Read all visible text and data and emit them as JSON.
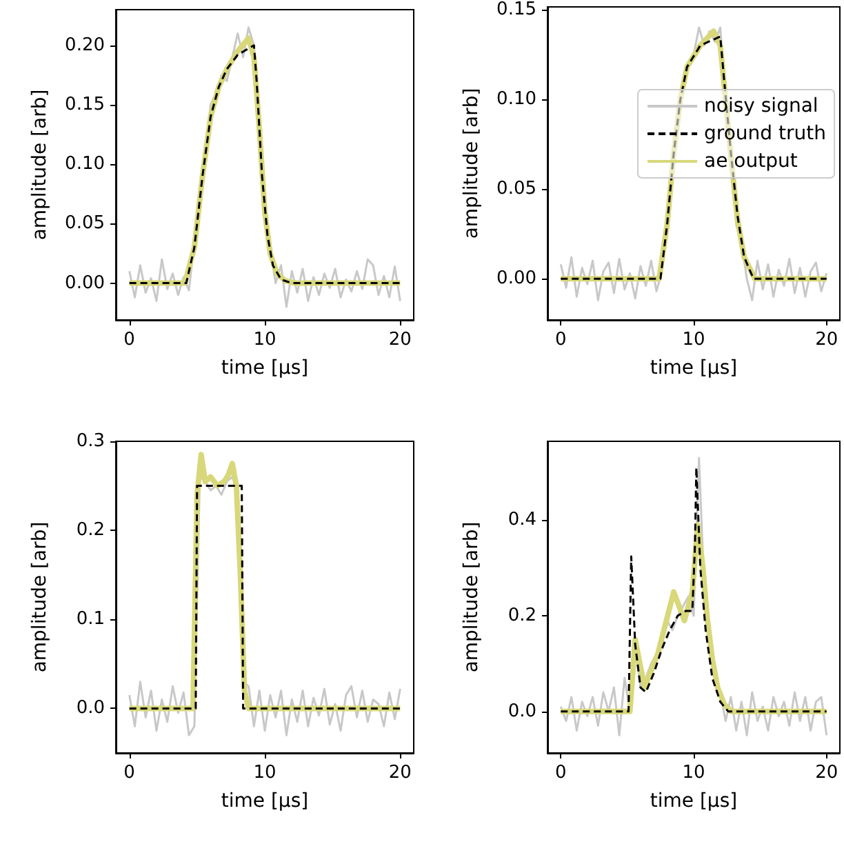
{
  "chart_data": [
    {
      "type": "line",
      "xlabel": "time [μs]",
      "ylabel": "amplitude [arb]",
      "legend": false,
      "grid": false,
      "marker": "none",
      "xlim": [
        -1,
        21
      ],
      "xticks": [
        0,
        10,
        20
      ],
      "ylim": [
        -0.031,
        0.23
      ],
      "yticks": [
        {
          "value": 0,
          "label": "0.00"
        },
        {
          "value": 0.05,
          "label": "0.05"
        },
        {
          "value": 0.1,
          "label": "0.10"
        },
        {
          "value": 0.15,
          "label": "0.15"
        },
        {
          "value": 0.2,
          "label": "0.20"
        }
      ],
      "x": [
        0,
        0.4,
        0.8,
        1.2,
        1.6,
        2,
        2.4,
        2.8,
        3.2,
        3.6,
        4,
        4.4,
        4.8,
        5.2,
        5.6,
        6,
        6.4,
        6.8,
        7.2,
        7.6,
        8,
        8.4,
        8.8,
        9.2,
        9.6,
        10,
        10.4,
        10.8,
        11.2,
        11.6,
        12,
        12.4,
        12.8,
        13.2,
        13.6,
        14,
        14.4,
        14.8,
        15.2,
        15.6,
        16,
        16.4,
        16.8,
        17.2,
        17.6,
        18,
        18.4,
        18.8,
        19.2,
        19.6,
        20
      ],
      "series": [
        {
          "color": "#c8c8c8",
          "line_style": "solid",
          "values": [
            0.01,
            -0.012,
            0.015,
            -0.008,
            0.004,
            -0.015,
            0.02,
            -0.005,
            0.008,
            -0.01,
            0.005,
            -0.006,
            0.035,
            0.07,
            0.11,
            0.15,
            0.16,
            0.175,
            0.17,
            0.19,
            0.21,
            0.19,
            0.215,
            0.2,
            0.13,
            0.05,
            0.03,
            0.0,
            0.015,
            -0.02,
            0.01,
            -0.008,
            0.012,
            -0.015,
            0.005,
            -0.01,
            0.008,
            -0.004,
            0.012,
            -0.012,
            0.003,
            -0.007,
            0.01,
            -0.005,
            0.02,
            0.015,
            -0.01,
            0.006,
            -0.012,
            0.014,
            -0.015
          ]
        },
        {
          "color": "#000000",
          "line_style": "dashed",
          "x": [
            0,
            4.2,
            4.8,
            5.4,
            6,
            6.6,
            7.2,
            8,
            9.2,
            9.4,
            9.8,
            10.2,
            10.6,
            11.2,
            12,
            20
          ],
          "values": [
            0,
            0,
            0.03,
            0.09,
            0.14,
            0.165,
            0.18,
            0.192,
            0.2,
            0.17,
            0.09,
            0.04,
            0.015,
            0.003,
            0,
            0
          ]
        },
        {
          "color": "#d8d87a",
          "line_style": "solid",
          "x": [
            0,
            4.1,
            4.8,
            5.4,
            6,
            6.6,
            7.2,
            8,
            8.8,
            9.2,
            9.6,
            10,
            10.4,
            10.9,
            11.5,
            12.2,
            20
          ],
          "values": [
            0,
            0,
            0.03,
            0.09,
            0.14,
            0.165,
            0.18,
            0.195,
            0.206,
            0.19,
            0.13,
            0.06,
            0.025,
            0.008,
            0.002,
            0,
            0
          ]
        }
      ]
    },
    {
      "type": "line",
      "xlabel": "time [μs]",
      "ylabel": "amplitude [arb]",
      "legend": "right",
      "grid": false,
      "marker": "none",
      "xlim": [
        -1,
        21
      ],
      "xticks": [
        0,
        10,
        20
      ],
      "ylim": [
        -0.023,
        0.1515
      ],
      "yticks": [
        {
          "value": 0,
          "label": "0.00"
        },
        {
          "value": 0.05,
          "label": "0.05"
        },
        {
          "value": 0.1,
          "label": "0.10"
        },
        {
          "value": 0.15,
          "label": "0.15"
        }
      ],
      "x": [
        0,
        0.4,
        0.8,
        1.2,
        1.6,
        2,
        2.4,
        2.8,
        3.2,
        3.6,
        4,
        4.4,
        4.8,
        5.2,
        5.6,
        6,
        6.4,
        6.8,
        7.2,
        7.6,
        8,
        8.4,
        8.8,
        9.2,
        9.6,
        10,
        10.4,
        10.8,
        11.2,
        11.6,
        12,
        12.4,
        12.8,
        13.2,
        13.6,
        14,
        14.4,
        14.8,
        15.2,
        15.6,
        16,
        16.4,
        16.8,
        17.2,
        17.6,
        18,
        18.4,
        18.8,
        19.2,
        19.6,
        20
      ],
      "series": [
        {
          "name": "noisy signal",
          "color": "#c8c8c8",
          "line_style": "solid",
          "values": [
            0.008,
            -0.005,
            0.012,
            -0.01,
            0.006,
            -0.003,
            0.01,
            -0.012,
            0.004,
            0.009,
            -0.008,
            0.011,
            -0.006,
            0.003,
            -0.011,
            0.007,
            -0.004,
            0.01,
            -0.007,
            0.004,
            0.03,
            0.065,
            0.09,
            0.11,
            0.12,
            0.125,
            0.14,
            0.13,
            0.138,
            0.132,
            0.14,
            0.1,
            0.075,
            0.03,
            0.02,
            0.0,
            -0.012,
            0.01,
            -0.006,
            0.008,
            -0.01,
            0.005,
            -0.004,
            0.011,
            -0.008,
            0.006,
            -0.01,
            0.004,
            0.009,
            -0.007,
            0.003
          ]
        },
        {
          "name": "ground truth",
          "color": "#000000",
          "line_style": "dashed",
          "x": [
            0,
            7.5,
            8,
            8.5,
            9,
            9.5,
            10.5,
            12,
            12.3,
            12.8,
            13.3,
            13.8,
            14.5,
            20
          ],
          "values": [
            0,
            0,
            0.03,
            0.07,
            0.1,
            0.118,
            0.13,
            0.135,
            0.11,
            0.07,
            0.035,
            0.012,
            0,
            0
          ]
        },
        {
          "name": "ae output",
          "color": "#d8d87a",
          "line_style": "solid",
          "x": [
            0,
            7.4,
            8,
            8.5,
            9,
            9.5,
            10.5,
            11.5,
            12,
            12.4,
            12.8,
            13.3,
            13.8,
            14.6,
            20
          ],
          "values": [
            0,
            0,
            0.03,
            0.07,
            0.1,
            0.118,
            0.13,
            0.138,
            0.13,
            0.1,
            0.068,
            0.033,
            0.012,
            0,
            0
          ]
        }
      ]
    },
    {
      "type": "line",
      "xlabel": "time [μs]",
      "ylabel": "amplitude [arb]",
      "legend": false,
      "grid": false,
      "marker": "none",
      "xlim": [
        -1,
        21
      ],
      "xticks": [
        0,
        10,
        20
      ],
      "ylim": [
        -0.05,
        0.3
      ],
      "yticks": [
        {
          "value": 0,
          "label": "0.0"
        },
        {
          "value": 0.1,
          "label": "0.1"
        },
        {
          "value": 0.2,
          "label": "0.2"
        },
        {
          "value": 0.3,
          "label": "0.3"
        }
      ],
      "x": [
        0,
        0.4,
        0.8,
        1.2,
        1.6,
        2,
        2.4,
        2.8,
        3.2,
        3.6,
        4,
        4.4,
        4.8,
        5.2,
        5.6,
        6,
        6.4,
        6.8,
        7.2,
        7.6,
        8,
        8.4,
        8.8,
        9.2,
        9.6,
        10,
        10.4,
        10.8,
        11.2,
        11.6,
        12,
        12.4,
        12.8,
        13.2,
        13.6,
        14,
        14.4,
        14.8,
        15.2,
        15.6,
        16,
        16.4,
        16.8,
        17.2,
        17.6,
        18,
        18.4,
        18.8,
        19.2,
        19.6,
        20
      ],
      "series": [
        {
          "color": "#c8c8c8",
          "line_style": "solid",
          "values": [
            0.015,
            -0.02,
            0.03,
            -0.01,
            0.02,
            -0.025,
            0.01,
            -0.015,
            0.025,
            -0.005,
            0.018,
            -0.03,
            -0.02,
            0.26,
            0.255,
            0.245,
            0.25,
            0.24,
            0.255,
            0.26,
            0.245,
            0.03,
            0.025,
            -0.02,
            0.02,
            -0.025,
            0.015,
            -0.01,
            0.02,
            -0.03,
            0.01,
            -0.015,
            0.02,
            -0.02,
            0.012,
            -0.008,
            0.022,
            -0.018,
            0.005,
            -0.025,
            0.015,
            0.025,
            -0.01,
            0.02,
            -0.015,
            0.01,
            0.005,
            -0.02,
            0.018,
            -0.012,
            0.022
          ]
        },
        {
          "color": "#000000",
          "line_style": "dashed",
          "x": [
            0,
            4.9,
            5.0,
            8.3,
            8.4,
            20
          ],
          "values": [
            0,
            0,
            0.25,
            0.25,
            0,
            0
          ]
        },
        {
          "color": "#d8d87a",
          "line_style": "solid",
          "x": [
            0,
            4.7,
            5.0,
            5.3,
            5.6,
            6,
            6.5,
            7,
            7.3,
            7.6,
            7.9,
            8.2,
            8.5,
            8.8,
            20
          ],
          "values": [
            0,
            0,
            0.24,
            0.285,
            0.255,
            0.26,
            0.25,
            0.255,
            0.262,
            0.275,
            0.25,
            0.15,
            0.02,
            0,
            0
          ]
        }
      ]
    },
    {
      "type": "line",
      "xlabel": "time [μs]",
      "ylabel": "amplitude [arb]",
      "legend": false,
      "grid": false,
      "marker": "none",
      "xlim": [
        -1,
        21
      ],
      "xticks": [
        0,
        10,
        20
      ],
      "ylim": [
        -0.087,
        0.565
      ],
      "yticks": [
        {
          "value": 0,
          "label": "0.0"
        },
        {
          "value": 0.2,
          "label": "0.2"
        },
        {
          "value": 0.4,
          "label": "0.4"
        }
      ],
      "x": [
        0,
        0.4,
        0.8,
        1.2,
        1.6,
        2,
        2.4,
        2.8,
        3.2,
        3.6,
        4,
        4.4,
        4.8,
        5.2,
        5.6,
        6,
        6.4,
        6.8,
        7.2,
        7.6,
        8,
        8.4,
        8.8,
        9.2,
        9.6,
        10,
        10.4,
        10.8,
        11.2,
        11.6,
        12,
        12.4,
        12.8,
        13.2,
        13.6,
        14,
        14.4,
        14.8,
        15.2,
        15.6,
        16,
        16.4,
        16.8,
        17.2,
        17.6,
        18,
        18.4,
        18.8,
        19.2,
        19.6,
        20
      ],
      "series": [
        {
          "color": "#c8c8c8",
          "line_style": "solid",
          "values": [
            0.01,
            -0.02,
            0.03,
            -0.04,
            0.02,
            -0.01,
            0.03,
            -0.03,
            0.04,
            0.0,
            0.05,
            -0.05,
            0.07,
            0.0,
            0.14,
            0.05,
            0.07,
            0.1,
            0.12,
            0.14,
            0.19,
            0.17,
            0.2,
            0.22,
            0.24,
            0.2,
            0.53,
            0.25,
            0.12,
            0.08,
            0.04,
            -0.02,
            0.03,
            -0.04,
            0.02,
            -0.05,
            0.04,
            -0.02,
            0.01,
            -0.04,
            0.03,
            -0.01,
            0.02,
            -0.03,
            0.04,
            -0.02,
            0.03,
            -0.04,
            0.02,
            0.03,
            -0.05
          ]
        },
        {
          "color": "#000000",
          "line_style": "dashed",
          "x": [
            0,
            5.1,
            5.3,
            5.6,
            6.0,
            6.4,
            7,
            7.6,
            8.2,
            8.8,
            9.4,
            9.9,
            10.1,
            10.2,
            10.5,
            10.9,
            11.4,
            12,
            12.6,
            20
          ],
          "values": [
            0,
            0,
            0.324,
            0.14,
            0.05,
            0.04,
            0.08,
            0.13,
            0.17,
            0.2,
            0.21,
            0.21,
            0.35,
            0.51,
            0.3,
            0.17,
            0.07,
            0.02,
            0,
            0
          ]
        },
        {
          "color": "#d8d87a",
          "line_style": "solid",
          "x": [
            0,
            5.2,
            5.6,
            6.3,
            7.3,
            8.5,
            9.3,
            9.9,
            10.3,
            10.7,
            11,
            11.4,
            11.8,
            12.3,
            12.8,
            20
          ],
          "values": [
            0,
            0,
            0.15,
            0.05,
            0.12,
            0.25,
            0.19,
            0.25,
            0.39,
            0.3,
            0.2,
            0.11,
            0.05,
            0.015,
            0,
            0
          ]
        }
      ]
    }
  ]
}
